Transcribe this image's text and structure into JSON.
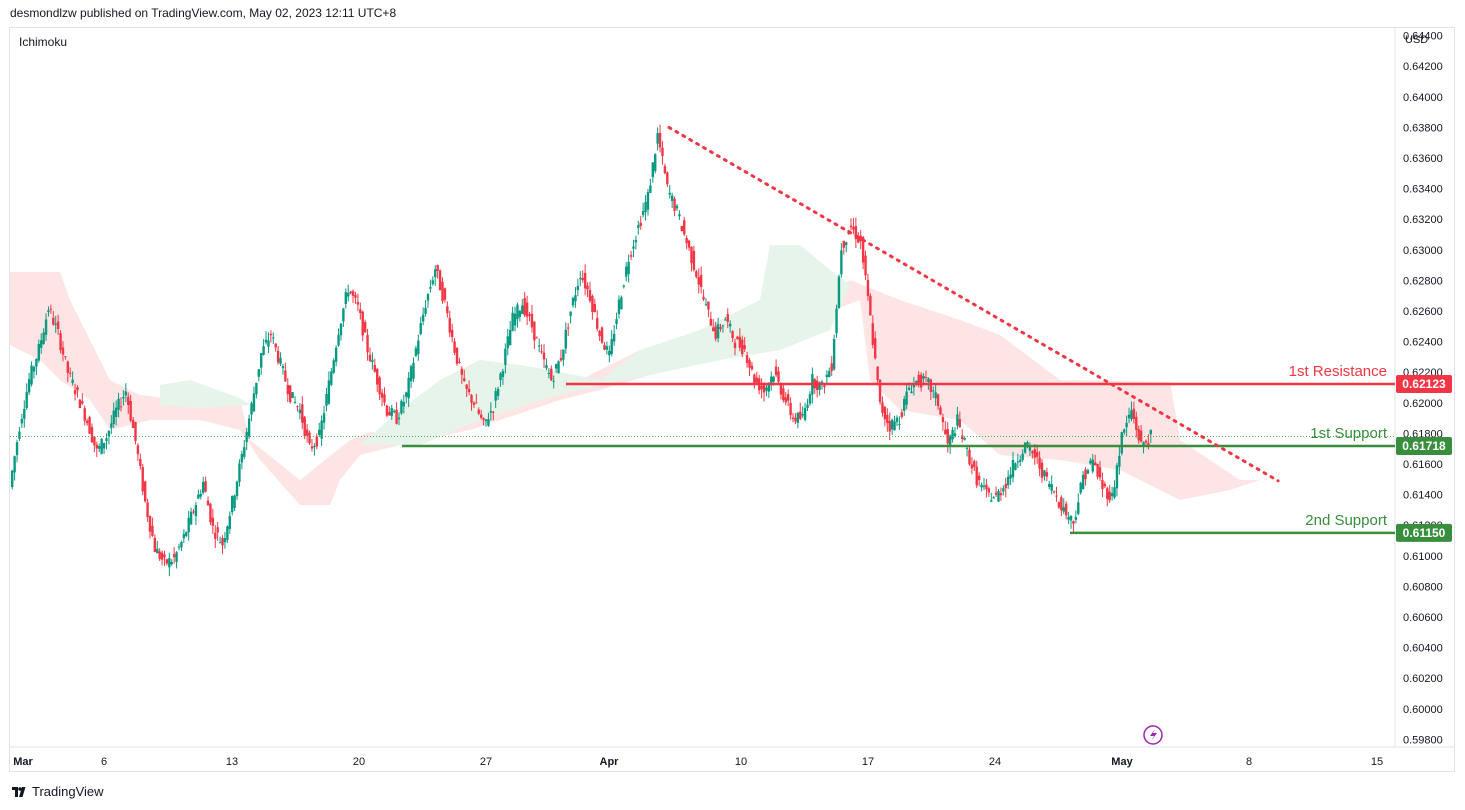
{
  "header": {
    "publisher": "desmondlzw published on TradingView.com, May 02, 2023 12:11 UTC+8"
  },
  "indicator": {
    "name": "Ichimoku"
  },
  "axis": {
    "currency": "USD"
  },
  "footer": {
    "brand": "TradingView"
  },
  "icons": {
    "flash": "flash-icon",
    "logo": "tradingview-logo-icon"
  },
  "colors": {
    "bull": "#089981",
    "bear": "#f23645",
    "resistance": "#f23645",
    "support": "#388e3c",
    "cloud_bear": "#fde0e0",
    "cloud_bull": "#e6f4ea",
    "trendline": "#f23645"
  },
  "chart_data": {
    "type": "candlestick",
    "title": "",
    "xlabel": "",
    "ylabel": "",
    "ylim": [
      0.5975,
      0.6445
    ],
    "y_ticks": [
      "0.64400",
      "0.64200",
      "0.64000",
      "0.63800",
      "0.63600",
      "0.63400",
      "0.63200",
      "0.63000",
      "0.62800",
      "0.62600",
      "0.62400",
      "0.62200",
      "0.62000",
      "0.61800",
      "0.61600",
      "0.61400",
      "0.61200",
      "0.61000",
      "0.60800",
      "0.60600",
      "0.60400",
      "0.60200",
      "0.60000",
      "0.59800"
    ],
    "x_ticks": [
      {
        "label": "Mar",
        "bold": true
      },
      {
        "label": "6"
      },
      {
        "label": "13"
      },
      {
        "label": "20"
      },
      {
        "label": "27"
      },
      {
        "label": "Apr",
        "bold": true
      },
      {
        "label": "10"
      },
      {
        "label": "17"
      },
      {
        "label": "24"
      },
      {
        "label": "May",
        "bold": true
      },
      {
        "label": "8"
      },
      {
        "label": "15"
      }
    ],
    "levels": [
      {
        "name": "1st Resistance",
        "value": 0.62123,
        "price": "0.62123",
        "kind": "resistance"
      },
      {
        "name": "1st Support",
        "value": 0.61718,
        "price": "0.61718",
        "kind": "support"
      },
      {
        "name": "2nd Support",
        "value": 0.6115,
        "price": "0.61150",
        "kind": "support"
      }
    ],
    "trendline": {
      "from": {
        "date": "2023-04-05",
        "value": 0.638
      },
      "to": {
        "date": "2023-05-08",
        "value": 0.615
      },
      "style": "dotted"
    },
    "last_price": 0.6178,
    "ohlc_path": [
      0.6145,
      0.6185,
      0.6215,
      0.6235,
      0.6262,
      0.6245,
      0.622,
      0.6205,
      0.6188,
      0.6168,
      0.6178,
      0.6195,
      0.6208,
      0.6175,
      0.6135,
      0.6105,
      0.6095,
      0.6098,
      0.6112,
      0.613,
      0.6148,
      0.6118,
      0.6108,
      0.6135,
      0.6165,
      0.6198,
      0.6232,
      0.6245,
      0.6225,
      0.6205,
      0.6195,
      0.617,
      0.6178,
      0.6212,
      0.6248,
      0.6275,
      0.6262,
      0.6235,
      0.6215,
      0.6195,
      0.619,
      0.6205,
      0.6235,
      0.6265,
      0.6288,
      0.6265,
      0.6235,
      0.621,
      0.62,
      0.6185,
      0.6198,
      0.6225,
      0.6255,
      0.6265,
      0.625,
      0.623,
      0.6215,
      0.623,
      0.626,
      0.6285,
      0.627,
      0.6245,
      0.623,
      0.6265,
      0.6295,
      0.6315,
      0.6335,
      0.6375,
      0.634,
      0.6325,
      0.6305,
      0.6285,
      0.6262,
      0.6245,
      0.6255,
      0.624,
      0.6235,
      0.6215,
      0.6208,
      0.622,
      0.6205,
      0.619,
      0.619,
      0.6215,
      0.621,
      0.6225,
      0.6302,
      0.6315,
      0.6305,
      0.6255,
      0.6198,
      0.6185,
      0.619,
      0.621,
      0.6215,
      0.6212,
      0.62,
      0.6172,
      0.6188,
      0.6168,
      0.615,
      0.614,
      0.6138,
      0.6148,
      0.6162,
      0.6172,
      0.6165,
      0.6152,
      0.6142,
      0.613,
      0.6122,
      0.6152,
      0.6162,
      0.6145,
      0.6138,
      0.6178,
      0.6195,
      0.6172,
      0.6178
    ],
    "x_dates": [
      "2023-02-28",
      "2023-05-02"
    ]
  }
}
